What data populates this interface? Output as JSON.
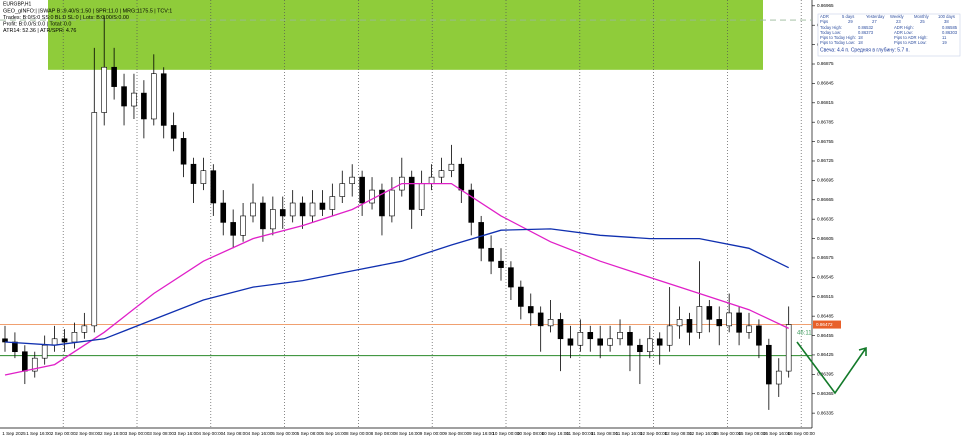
{
  "chart_data": {
    "type": "candlestick",
    "symbol": "EURGBP,H1",
    "info_lines": [
      "GEO_gINFO:| |SWAP B:-9.40/S:1.50 | SPR:11.0 | MRG:1175.5 | TCV:1",
      "Trades: B:0/S:0 SS:0 BL:0 SL:0 | Lots: B:0.00/S:0.00",
      "Profit: B:0.0/S:0.0 | Total: 0.0",
      "ATR14: 52.36 | ATR/SPR: 4.76"
    ],
    "panel": {
      "header": [
        "ADR",
        "5 days",
        "Yesterday",
        "Weekly",
        "Monthly",
        "100 days"
      ],
      "pips": [
        "Pips",
        "29",
        "27",
        "23",
        "25",
        "38"
      ],
      "rows": [
        [
          "Today High:",
          "0.86532",
          "ADR High:",
          "0.86585"
        ],
        [
          "Today Low:",
          "0.86373",
          "ADR Low:",
          "0.86303"
        ],
        [
          "Pips to Today High:",
          "18",
          "Pips to ADR High:",
          "11"
        ],
        [
          "Pips to Today Low:",
          "18",
          "Pips to ADR Low:",
          "19"
        ]
      ],
      "footer": "Свеча: 4.4 п. Средняя в глубину: 5.7 п."
    },
    "timer": "46:11",
    "ylim": [
      0.86312,
      0.86974
    ],
    "yticks": [
      0.86335,
      0.86365,
      0.86395,
      0.86425,
      0.86455,
      0.86485,
      0.86515,
      0.86545,
      0.86575,
      0.86605,
      0.86635,
      0.86665,
      0.86695,
      0.86725,
      0.86755,
      0.86785,
      0.86815,
      0.86845,
      0.86875,
      0.86905,
      0.86935,
      0.86965
    ],
    "time_labels": [
      "1 Sep 2025",
      "1 Sep 16:00",
      "2 Sep 00:00",
      "2 Sep 08:00",
      "2 Sep 16:00",
      "3 Sep 00:00",
      "3 Sep 08:00",
      "3 Sep 16:00",
      "4 Sep 00:00",
      "4 Sep 08:00",
      "4 Sep 16:00",
      "5 Sep 00:00",
      "5 Sep 08:00",
      "5 Sep 16:00",
      "8 Sep 00:00",
      "8 Sep 08:00",
      "8 Sep 16:00",
      "9 Sep 00:00",
      "9 Sep 08:00",
      "9 Sep 16:00",
      "10 Sep 00:00",
      "10 Sep 08:00",
      "10 Sep 16:00",
      "11 Sep 00:00",
      "11 Sep 08:00",
      "11 Sep 16:00",
      "12 Sep 00:00",
      "12 Sep 08:00",
      "12 Sep 16:00",
      "15 Sep 00:00",
      "15 Sep 08:00",
      "15 Sep 16:00",
      "16 Sep 00:00"
    ],
    "candles": [
      [
        0.8645,
        0.8647,
        0.8643,
        0.86445
      ],
      [
        0.86445,
        0.8646,
        0.8642,
        0.8643
      ],
      [
        0.8643,
        0.8644,
        0.8638,
        0.864
      ],
      [
        0.864,
        0.8643,
        0.8639,
        0.8642
      ],
      [
        0.8642,
        0.86455,
        0.8641,
        0.8644
      ],
      [
        0.8644,
        0.8647,
        0.8643,
        0.8645
      ],
      [
        0.8645,
        0.86465,
        0.8643,
        0.86445
      ],
      [
        0.86445,
        0.86475,
        0.86435,
        0.8646
      ],
      [
        0.8646,
        0.8649,
        0.8645,
        0.8647
      ],
      [
        0.8647,
        0.869,
        0.8646,
        0.868
      ],
      [
        0.868,
        0.8695,
        0.8678,
        0.8687
      ],
      [
        0.8687,
        0.869,
        0.8682,
        0.8684
      ],
      [
        0.8684,
        0.8686,
        0.8678,
        0.8681
      ],
      [
        0.8681,
        0.8686,
        0.8679,
        0.8683
      ],
      [
        0.8683,
        0.8685,
        0.8676,
        0.8679
      ],
      [
        0.8679,
        0.8689,
        0.8678,
        0.8686
      ],
      [
        0.8686,
        0.8687,
        0.8676,
        0.8678
      ],
      [
        0.8678,
        0.868,
        0.8674,
        0.8676
      ],
      [
        0.8676,
        0.8677,
        0.867,
        0.8672
      ],
      [
        0.8672,
        0.8673,
        0.8666,
        0.8669
      ],
      [
        0.8669,
        0.8673,
        0.8668,
        0.8671
      ],
      [
        0.8671,
        0.8672,
        0.8664,
        0.8666
      ],
      [
        0.8666,
        0.8668,
        0.8661,
        0.8663
      ],
      [
        0.8663,
        0.8665,
        0.8659,
        0.8661
      ],
      [
        0.8661,
        0.8666,
        0.866,
        0.8664
      ],
      [
        0.8664,
        0.8669,
        0.8663,
        0.8666
      ],
      [
        0.8666,
        0.8667,
        0.866,
        0.8662
      ],
      [
        0.8662,
        0.8667,
        0.8661,
        0.8665
      ],
      [
        0.8665,
        0.8667,
        0.8662,
        0.8664
      ],
      [
        0.8664,
        0.8668,
        0.8663,
        0.8666
      ],
      [
        0.8666,
        0.8667,
        0.8662,
        0.8664
      ],
      [
        0.8664,
        0.8668,
        0.8663,
        0.8666
      ],
      [
        0.8666,
        0.8668,
        0.8664,
        0.8665
      ],
      [
        0.8665,
        0.8669,
        0.8664,
        0.8667
      ],
      [
        0.8667,
        0.8671,
        0.8666,
        0.8669
      ],
      [
        0.8669,
        0.8672,
        0.8667,
        0.867
      ],
      [
        0.867,
        0.8671,
        0.8664,
        0.8666
      ],
      [
        0.8666,
        0.867,
        0.8665,
        0.8668
      ],
      [
        0.8668,
        0.8669,
        0.8661,
        0.8664
      ],
      [
        0.8664,
        0.867,
        0.8663,
        0.8668
      ],
      [
        0.8668,
        0.8673,
        0.8667,
        0.867
      ],
      [
        0.867,
        0.8671,
        0.8662,
        0.8665
      ],
      [
        0.8665,
        0.8671,
        0.8664,
        0.8669
      ],
      [
        0.8669,
        0.8672,
        0.8668,
        0.867
      ],
      [
        0.867,
        0.8673,
        0.8669,
        0.8671
      ],
      [
        0.8671,
        0.8675,
        0.867,
        0.8672
      ],
      [
        0.8672,
        0.8673,
        0.8666,
        0.8668
      ],
      [
        0.8668,
        0.8669,
        0.8661,
        0.8663
      ],
      [
        0.8663,
        0.8664,
        0.8657,
        0.8659
      ],
      [
        0.8659,
        0.8661,
        0.8655,
        0.8657
      ],
      [
        0.8657,
        0.8659,
        0.8654,
        0.8656
      ],
      [
        0.8656,
        0.8657,
        0.8651,
        0.8653
      ],
      [
        0.8653,
        0.8654,
        0.8648,
        0.865
      ],
      [
        0.865,
        0.8652,
        0.8647,
        0.8649
      ],
      [
        0.8649,
        0.865,
        0.8643,
        0.8647
      ],
      [
        0.8647,
        0.8651,
        0.8646,
        0.8648
      ],
      [
        0.8648,
        0.8649,
        0.864,
        0.8645
      ],
      [
        0.8645,
        0.8647,
        0.8642,
        0.8644
      ],
      [
        0.8644,
        0.8648,
        0.8643,
        0.8646
      ],
      [
        0.8646,
        0.8647,
        0.8643,
        0.8645
      ],
      [
        0.8645,
        0.8647,
        0.8642,
        0.8644
      ],
      [
        0.8644,
        0.8647,
        0.8643,
        0.8645
      ],
      [
        0.8645,
        0.8648,
        0.8644,
        0.8646
      ],
      [
        0.8646,
        0.8647,
        0.864,
        0.8644
      ],
      [
        0.8644,
        0.8645,
        0.8638,
        0.8643
      ],
      [
        0.8643,
        0.8647,
        0.8642,
        0.8645
      ],
      [
        0.8645,
        0.8646,
        0.8641,
        0.8644
      ],
      [
        0.8644,
        0.8653,
        0.8643,
        0.8647
      ],
      [
        0.8647,
        0.865,
        0.8645,
        0.8648
      ],
      [
        0.8648,
        0.8649,
        0.8644,
        0.8646
      ],
      [
        0.8646,
        0.8657,
        0.8645,
        0.865
      ],
      [
        0.865,
        0.8651,
        0.8646,
        0.8648
      ],
      [
        0.8648,
        0.865,
        0.8644,
        0.8647
      ],
      [
        0.8647,
        0.8652,
        0.8646,
        0.8649
      ],
      [
        0.8649,
        0.865,
        0.8644,
        0.8646
      ],
      [
        0.8646,
        0.8649,
        0.8645,
        0.8647
      ],
      [
        0.8647,
        0.8648,
        0.8642,
        0.8644
      ],
      [
        0.8644,
        0.8645,
        0.8634,
        0.8638
      ],
      [
        0.8638,
        0.8642,
        0.8636,
        0.864
      ],
      [
        0.864,
        0.865,
        0.8639,
        0.86472
      ]
    ],
    "series": [
      {
        "color": "#e020c8",
        "x": [
          0,
          5,
          10,
          15,
          20,
          25,
          30,
          35,
          40,
          45,
          50,
          55,
          60,
          65,
          70,
          75,
          79
        ],
        "values": [
          0.86394,
          0.8641,
          0.8646,
          0.8652,
          0.8657,
          0.86605,
          0.86625,
          0.8665,
          0.8669,
          0.8669,
          0.8664,
          0.866,
          0.8657,
          0.86545,
          0.8652,
          0.86495,
          0.86466
        ]
      },
      {
        "color": "#1030b0",
        "x": [
          0,
          5,
          10,
          15,
          20,
          25,
          30,
          35,
          40,
          45,
          50,
          55,
          60,
          65,
          70,
          75,
          79
        ],
        "values": [
          0.86445,
          0.8644,
          0.8645,
          0.8648,
          0.8651,
          0.8653,
          0.8654,
          0.86555,
          0.8657,
          0.86595,
          0.86618,
          0.8662,
          0.8661,
          0.86605,
          0.86605,
          0.8659,
          0.8656
        ]
      }
    ],
    "zone": [
      0.86866,
      0.86974
    ],
    "dashed_level": 0.86943,
    "support_level": 0.86424,
    "current_price": 0.86472
  }
}
